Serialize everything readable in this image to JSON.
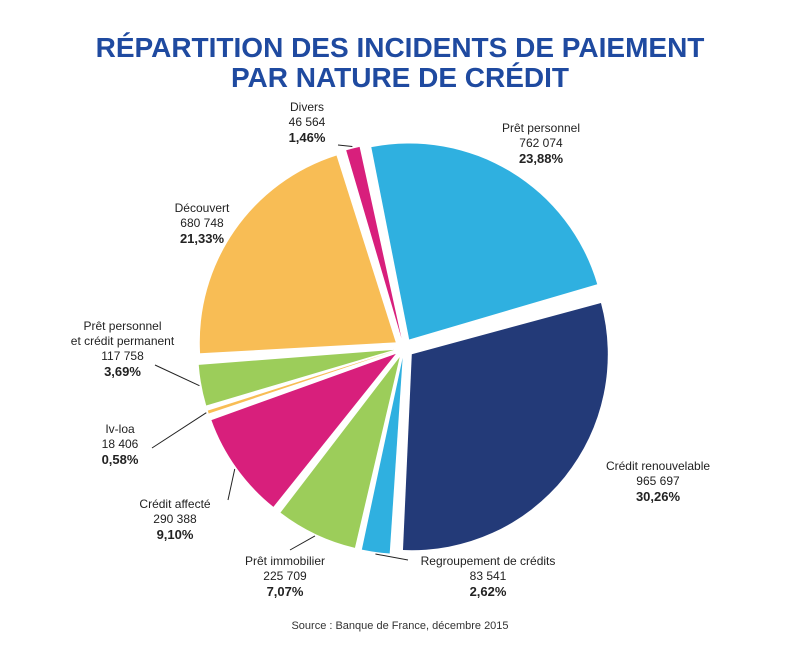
{
  "title_line1": "RÉPARTITION DES INCIDENTS DE PAIEMENT",
  "title_line2": "PAR NATURE DE CRÉDIT",
  "source": "Source : Banque de France, décembre 2015",
  "chart_data": {
    "type": "pie",
    "title": "RÉPARTITION DES INCIDENTS DE PAIEMENT PAR NATURE DE CRÉDIT",
    "slices": [
      {
        "label": "Divers",
        "value": 46564,
        "value_text": "46 564",
        "percent": 1.46,
        "percent_text": "1,46%",
        "color": "#d81f7c"
      },
      {
        "label": "Prêt personnel",
        "value": 762074,
        "value_text": "762 074",
        "percent": 23.88,
        "percent_text": "23,88%",
        "color": "#2fb0e0"
      },
      {
        "label": "Crédit renouvelable",
        "value": 965697,
        "value_text": "965 697",
        "percent": 30.26,
        "percent_text": "30,26%",
        "color": "#233a78"
      },
      {
        "label": "Regroupement de crédits",
        "value": 83541,
        "value_text": "83 541",
        "percent": 2.62,
        "percent_text": "2,62%",
        "color": "#2fb0e0"
      },
      {
        "label": "Prêt immobilier",
        "value": 225709,
        "value_text": "225 709",
        "percent": 7.07,
        "percent_text": "7,07%",
        "color": "#9ccd5a"
      },
      {
        "label": "Crédit affecté",
        "value": 290388,
        "value_text": "290 388",
        "percent": 9.1,
        "percent_text": "9,10%",
        "color": "#d81f7c"
      },
      {
        "label": "Iv-loa",
        "value": 18406,
        "value_text": "18 406",
        "percent": 0.58,
        "percent_text": "0,58%",
        "color": "#f8bd55"
      },
      {
        "label": "Prêt personnel et crédit permanent",
        "label_lines": [
          "Prêt personnel",
          "et crédit permanent"
        ],
        "value": 117758,
        "value_text": "117 758",
        "percent": 3.69,
        "percent_text": "3,69%",
        "color": "#9ccd5a"
      },
      {
        "label": "Découvert",
        "value": 680748,
        "value_text": "680 748",
        "percent": 21.33,
        "percent_text": "21,33%",
        "color": "#f8bd55"
      }
    ]
  }
}
